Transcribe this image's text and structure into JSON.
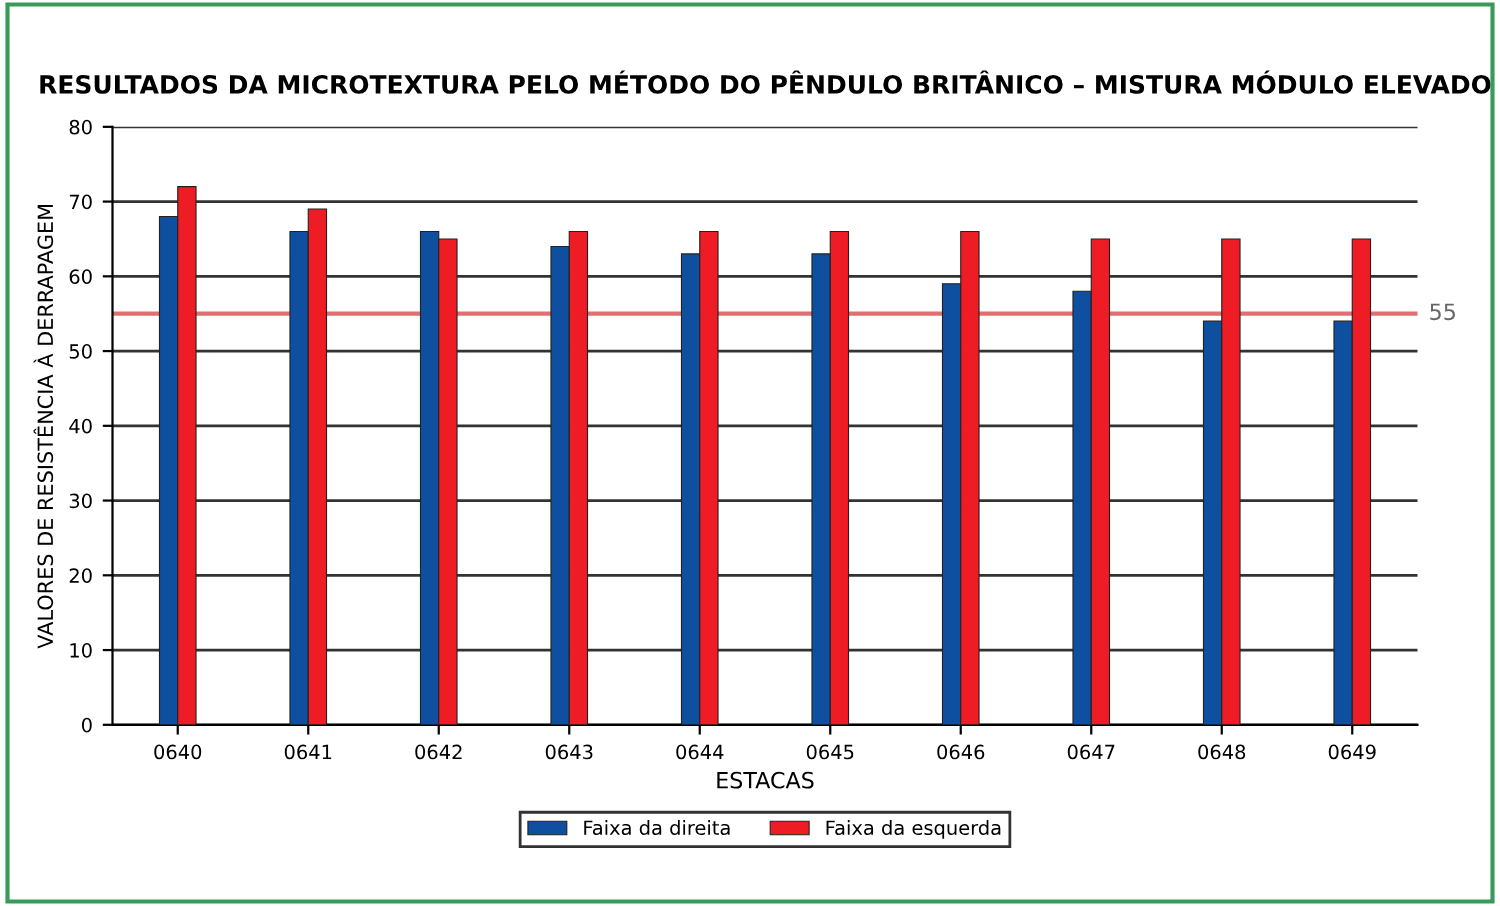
{
  "chart_data": {
    "type": "bar",
    "title": "RESULTADOS DA MICROTEXTURA PELO MÉTODO DO PÊNDULO BRITÂNICO – MISTURA MÓDULO ELEVADO",
    "xlabel": "ESTACAS",
    "ylabel": "VALORES DE RESISTÊNCIA À DERRAPAGEM",
    "categories": [
      "0640",
      "0641",
      "0642",
      "0643",
      "0644",
      "0645",
      "0646",
      "0647",
      "0648",
      "0649"
    ],
    "series": [
      {
        "name": "Faixa da direita",
        "color": "#0e4fa0",
        "values": [
          68,
          66,
          66,
          64,
          63,
          63,
          59,
          58,
          54,
          54
        ]
      },
      {
        "name": "Faixa da esquerda",
        "color": "#ee1c25",
        "values": [
          72,
          69,
          65,
          66,
          66,
          66,
          66,
          65,
          65,
          65
        ]
      }
    ],
    "ylim": [
      0,
      80
    ],
    "yticks": [
      0,
      10,
      20,
      30,
      40,
      50,
      60,
      70,
      80
    ],
    "grid": "y",
    "legend": "bottom",
    "ref_lines": [
      {
        "axis": "y",
        "value": 55,
        "label": "55",
        "color": "#e07070"
      }
    ]
  }
}
